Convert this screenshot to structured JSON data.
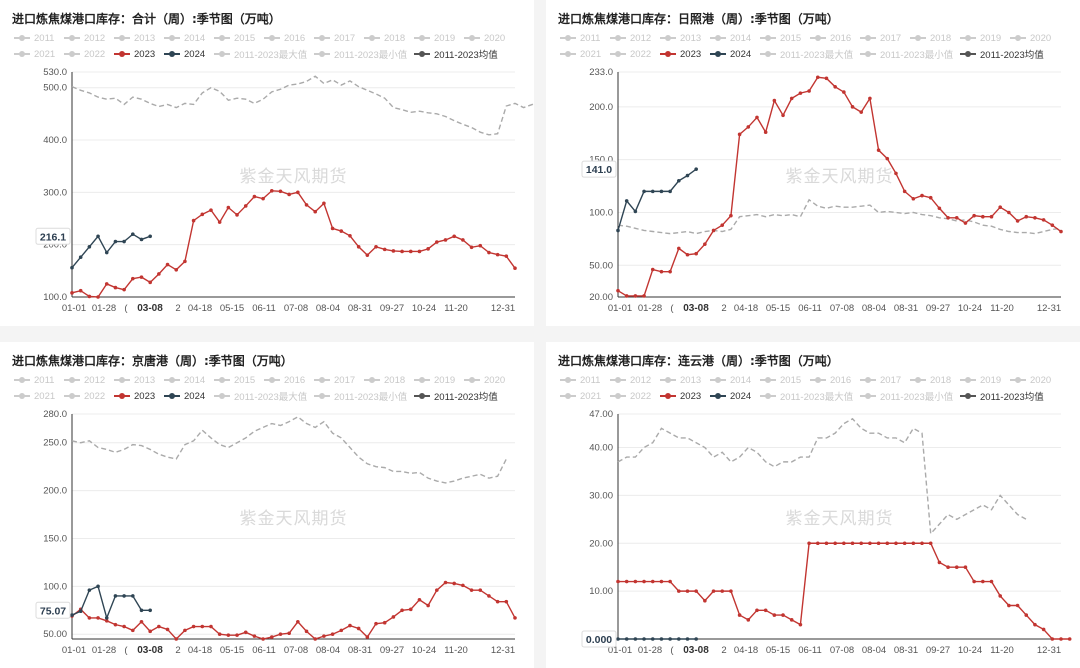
{
  "colors": {
    "s2023": "#c23531",
    "s2024": "#2f4554",
    "avg": "#aaaaaa",
    "legend_off": "#cccccc"
  },
  "legend": {
    "row1": [
      "2011",
      "2012",
      "2013",
      "2014",
      "2015",
      "2016",
      "2017",
      "2018",
      "2019",
      "2020"
    ],
    "row2": [
      {
        "label": "2021",
        "active": false
      },
      {
        "label": "2022",
        "active": false
      },
      {
        "label": "2023",
        "active": true,
        "color": "#c23531"
      },
      {
        "label": "2024",
        "active": true,
        "color": "#2f4554"
      },
      {
        "label": "2011-2023最大值",
        "active": false
      },
      {
        "label": "2011-2023最小值",
        "active": false
      },
      {
        "label": "2011-2023均值",
        "active": true,
        "color": "#555555"
      }
    ]
  },
  "watermark": "紫金天风期货",
  "chart_data": [
    {
      "type": "line",
      "title": "进口炼焦煤港口库存：合计（周）:季节图（万吨）",
      "ylim": [
        100,
        530
      ],
      "yticks": [
        "100.0",
        "200.0",
        "300.0",
        "400.0",
        "500.0",
        "530.0"
      ],
      "ytick_values": [
        100,
        200,
        300,
        400,
        500,
        530
      ],
      "x_tick_labels": [
        "01-01",
        "01-28",
        "(",
        "03-08",
        "2",
        "04-18",
        "05-15",
        "06-11",
        "07-08",
        "08-04",
        "08-31",
        "09-27",
        "10-24",
        "11-20",
        "12-31"
      ],
      "highlight_label": "216.1",
      "series": [
        {
          "name": "2023",
          "values": [
            108,
            112,
            101,
            100,
            125,
            118,
            114,
            135,
            138,
            128,
            144,
            162,
            152,
            168,
            246,
            258,
            266,
            243,
            271,
            257,
            274,
            292,
            288,
            303,
            302,
            296,
            300,
            276,
            263,
            279,
            231,
            226,
            217,
            196,
            180,
            196,
            191,
            188,
            187,
            187,
            187,
            192,
            205,
            209,
            216,
            209,
            195,
            198,
            185,
            181,
            178,
            155
          ]
        },
        {
          "name": "2024",
          "values": [
            156,
            176,
            196,
            216,
            185,
            206,
            206,
            220,
            210,
            216
          ]
        },
        {
          "name": "2011-2023均值",
          "values": [
            502,
            495,
            490,
            482,
            478,
            480,
            468,
            482,
            478,
            470,
            464,
            468,
            462,
            470,
            468,
            490,
            500,
            493,
            476,
            480,
            478,
            470,
            478,
            492,
            497,
            505,
            507,
            512,
            522,
            508,
            515,
            505,
            513,
            502,
            495,
            488,
            480,
            462,
            458,
            453,
            455,
            452,
            450,
            445,
            437,
            430,
            424,
            415,
            410,
            412,
            465,
            470,
            462,
            468,
            455,
            470
          ]
        }
      ]
    },
    {
      "type": "line",
      "title": "进口炼焦煤港口库存：日照港（周）:季节图（万吨）",
      "ylim": [
        20,
        233
      ],
      "yticks": [
        "20.00",
        "50.00",
        "100.0",
        "150.0",
        "200.0",
        "233.0"
      ],
      "ytick_values": [
        20,
        50,
        100,
        150,
        200,
        233
      ],
      "x_tick_labels": [
        "01-01",
        "01-28",
        "(",
        "03-08",
        "2",
        "04-18",
        "05-15",
        "06-11",
        "07-08",
        "08-04",
        "08-31",
        "09-27",
        "10-24",
        "11-20",
        "12-31"
      ],
      "highlight_label": "141.0",
      "series": [
        {
          "name": "2023",
          "values": [
            26,
            21,
            21,
            21,
            46,
            44,
            44,
            66,
            60,
            61,
            70,
            83,
            88,
            97,
            174,
            181,
            190,
            176,
            206,
            192,
            208,
            213,
            215,
            228,
            227,
            219,
            214,
            200,
            195,
            208,
            159,
            151,
            137,
            120,
            113,
            116,
            114,
            104,
            95,
            95,
            90,
            97,
            96,
            96,
            105,
            100,
            92,
            96,
            95,
            93,
            88,
            82
          ]
        },
        {
          "name": "2024",
          "values": [
            83,
            111,
            101,
            120,
            120,
            120,
            120,
            130,
            135,
            141
          ]
        },
        {
          "name": "2011-2023均值",
          "values": [
            88,
            87,
            85,
            83,
            82,
            81,
            80,
            81,
            82,
            80,
            82,
            83,
            82,
            84,
            96,
            97,
            98,
            96,
            98,
            97,
            98,
            96,
            112,
            106,
            104,
            106,
            105,
            105,
            106,
            107,
            100,
            101,
            100,
            99,
            100,
            98,
            97,
            95,
            94,
            92,
            93,
            91,
            88,
            87,
            84,
            82,
            81,
            81,
            80,
            82,
            84,
            85
          ]
        }
      ]
    },
    {
      "type": "line",
      "title": "进口炼焦煤港口库存：京唐港（周）:季节图（万吨）",
      "ylim": [
        45,
        280
      ],
      "yticks": [
        "50.00",
        "100.0",
        "150.0",
        "200.0",
        "250.0",
        "280.0"
      ],
      "ytick_values": [
        50,
        100,
        150,
        200,
        250,
        280
      ],
      "x_tick_labels": [
        "01-01",
        "01-28",
        "(",
        "03-08",
        "2",
        "04-18",
        "05-15",
        "06-11",
        "07-08",
        "08-04",
        "08-31",
        "09-27",
        "10-24",
        "11-20",
        "12-31"
      ],
      "highlight_label": "75.07",
      "series": [
        {
          "name": "2023",
          "values": [
            69,
            76,
            67,
            67,
            64,
            60,
            58,
            54,
            63,
            53,
            58,
            55,
            42,
            54,
            58,
            58,
            58,
            50,
            49,
            49,
            52,
            48,
            45,
            47,
            50,
            51,
            63,
            53,
            45,
            48,
            50,
            54,
            59,
            56,
            47,
            61,
            62,
            68,
            75,
            76,
            86,
            80,
            96,
            104,
            103,
            101,
            96,
            96,
            90,
            84,
            84,
            67
          ]
        },
        {
          "name": "2024",
          "values": [
            70,
            74,
            96,
            100,
            67,
            90,
            90,
            90,
            75,
            75
          ]
        },
        {
          "name": "2011-2023均值",
          "values": [
            252,
            250,
            252,
            245,
            243,
            240,
            243,
            248,
            247,
            243,
            238,
            235,
            233,
            248,
            252,
            263,
            255,
            248,
            245,
            250,
            255,
            262,
            266,
            270,
            268,
            272,
            277,
            270,
            266,
            272,
            260,
            255,
            245,
            235,
            228,
            225,
            224,
            220,
            220,
            218,
            219,
            213,
            210,
            208,
            210,
            213,
            215,
            217,
            213,
            215,
            233
          ]
        }
      ]
    },
    {
      "type": "line",
      "title": "进口炼焦煤港口库存：连云港（周）:季节图（万吨）",
      "ylim": [
        0,
        47
      ],
      "yticks": [
        "0.000",
        "10.00",
        "20.00",
        "30.00",
        "40.00",
        "47.00"
      ],
      "ytick_values": [
        0,
        10,
        20,
        30,
        40,
        47
      ],
      "x_tick_labels": [
        "01-01",
        "01-28",
        "(",
        "03-08",
        "2",
        "04-18",
        "05-15",
        "06-11",
        "07-08",
        "08-04",
        "08-31",
        "09-27",
        "10-24",
        "11-20",
        "12-31"
      ],
      "highlight_label": "0.000",
      "series": [
        {
          "name": "2023",
          "values": [
            12,
            12,
            12,
            12,
            12,
            12,
            12,
            10,
            10,
            10,
            8,
            10,
            10,
            10,
            5,
            4,
            6,
            6,
            5,
            5,
            4,
            3,
            20,
            20,
            20,
            20,
            20,
            20,
            20,
            20,
            20,
            20,
            20,
            20,
            20,
            20,
            20,
            16,
            15,
            15,
            15,
            12,
            12,
            12,
            9,
            7,
            7,
            5,
            3,
            2,
            0,
            0,
            0
          ]
        },
        {
          "name": "2024",
          "values": [
            0,
            0,
            0,
            0,
            0,
            0,
            0,
            0,
            0,
            0
          ]
        },
        {
          "name": "2011-2023均值",
          "values": [
            37,
            38,
            38,
            40,
            41,
            44,
            43,
            42,
            42,
            41,
            40,
            38,
            39,
            37,
            38,
            40,
            39,
            37,
            36,
            37,
            37,
            38,
            38,
            42,
            42,
            43,
            45,
            46,
            44,
            43,
            43,
            42,
            42,
            41,
            44,
            43,
            22,
            24,
            26,
            25,
            26,
            27,
            28,
            27,
            30,
            28,
            26,
            25
          ]
        }
      ]
    }
  ]
}
